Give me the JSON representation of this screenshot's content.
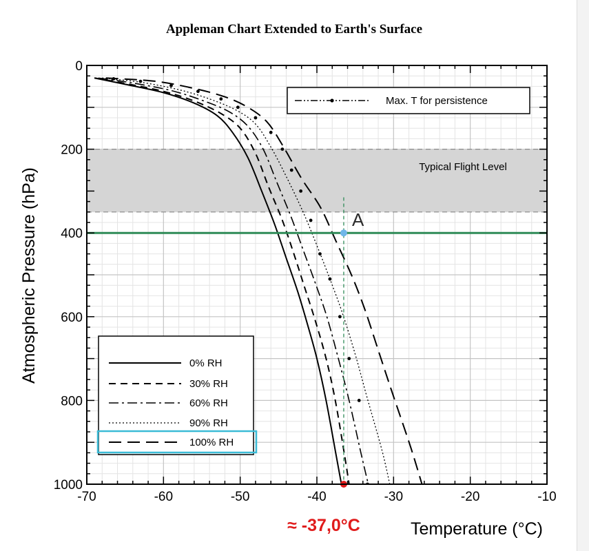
{
  "chart_data": {
    "type": "line",
    "title": "Appleman Chart Extended to Earth's Surface",
    "xlabel": "Temperature (°C)",
    "ylabel": "Atmospheric Pressure (hPa)",
    "xlim": [
      -70,
      -10
    ],
    "ylim": [
      0,
      1000
    ],
    "y_inverted": true,
    "x_ticks": [
      "-70",
      "-60",
      "-50",
      "-40",
      "-30",
      "-20",
      "-10"
    ],
    "y_ticks": [
      "0",
      "200",
      "400",
      "600",
      "800",
      "1000"
    ],
    "x_tick_values": [
      -70,
      -60,
      -50,
      -40,
      -30,
      -20,
      -10
    ],
    "y_tick_values": [
      0,
      200,
      400,
      600,
      800,
      1000
    ],
    "grid": true,
    "series": [
      {
        "name": "0% RH",
        "style": "solid",
        "color": "#000000",
        "x": [
          -69,
          -65,
          -60,
          -56,
          -53,
          -51,
          -49,
          -47.2,
          -45.5,
          -44,
          -42.5,
          -41.2,
          -40,
          -38.8,
          -37.5,
          -36.8
        ],
        "y": [
          30,
          45,
          65,
          90,
          120,
          160,
          220,
          300,
          380,
          460,
          540,
          620,
          700,
          800,
          930,
          1000
        ]
      },
      {
        "name": "30% RH",
        "style": "dashed",
        "color": "#000000",
        "x": [
          -69,
          -65,
          -60,
          -56,
          -52.5,
          -50,
          -48,
          -46.3,
          -44.5,
          -43,
          -41.6,
          -40.2,
          -38.8,
          -37.6,
          -36.4,
          -35.8
        ],
        "y": [
          30,
          43,
          62,
          85,
          115,
          150,
          210,
          290,
          370,
          450,
          530,
          610,
          700,
          800,
          930,
          1000
        ]
      },
      {
        "name": "60% RH",
        "style": "dashdot",
        "color": "#000000",
        "x": [
          -68.5,
          -64,
          -59,
          -55,
          -51.5,
          -49,
          -47,
          -45.2,
          -43.4,
          -41.8,
          -40.2,
          -38.7,
          -37.2,
          -35.8,
          -34.2,
          -33.3
        ],
        "y": [
          30,
          42,
          60,
          83,
          110,
          145,
          200,
          280,
          360,
          440,
          520,
          600,
          700,
          800,
          930,
          1000
        ]
      },
      {
        "name": "90% RH",
        "style": "dotted",
        "color": "#000000",
        "x": [
          -68,
          -63,
          -58,
          -54,
          -50.5,
          -48,
          -46,
          -44,
          -41.8,
          -40,
          -38.3,
          -36.7,
          -35,
          -33.5,
          -31.5,
          -30.5
        ],
        "y": [
          30,
          40,
          58,
          80,
          107,
          140,
          195,
          265,
          350,
          430,
          510,
          590,
          690,
          790,
          920,
          1000
        ]
      },
      {
        "name": "100% RH",
        "style": "longdash",
        "color": "#000000",
        "x": [
          -67.5,
          -61,
          -56,
          -52,
          -49,
          -46.5,
          -44.5,
          -42,
          -39.5,
          -37.5,
          -35.5,
          -33.8,
          -32,
          -30.2,
          -27.8,
          -26.3
        ],
        "y": [
          30,
          38,
          55,
          75,
          100,
          135,
          190,
          270,
          340,
          420,
          500,
          580,
          680,
          780,
          910,
          1000
        ]
      }
    ],
    "persistence_markers": {
      "name": "Max. T for persistence",
      "x": [
        -66.5,
        -63,
        -59,
        -55.5,
        -52.5,
        -50.3,
        -48,
        -46,
        -44.5,
        -43.3,
        -42.1,
        -40.8,
        -39.6,
        -38.3,
        -37,
        -35.8,
        -34.5,
        -33.4
      ],
      "y": [
        32,
        38,
        48,
        62,
        80,
        100,
        125,
        160,
        200,
        250,
        300,
        370,
        450,
        510,
        600,
        700,
        800,
        1000
      ]
    },
    "flight_level_band": {
      "label": "Typical Flight Level",
      "y_range": [
        200,
        350
      ],
      "color": "#d5d5d5"
    },
    "reference_line": {
      "y": 400,
      "color": "#2e8b57"
    },
    "point_A": {
      "label": "A",
      "x": -36.5,
      "y": 400,
      "color": "#6fb6e8"
    },
    "vertical_guide": {
      "x": -36.5,
      "y_range": [
        315,
        1000
      ],
      "color": "#2e8b57"
    },
    "answer_point": {
      "x": -36.5,
      "y": 1000,
      "color": "#e01b1b"
    },
    "answer_label": "≈ -37,0°C",
    "legend_top": {
      "label": "Max. T for persistence",
      "placement": "top-right"
    },
    "legend_bottom": {
      "placement": "bottom-left",
      "highlight_entry": "100% RH",
      "highlight_color": "#3bbbd6"
    }
  }
}
